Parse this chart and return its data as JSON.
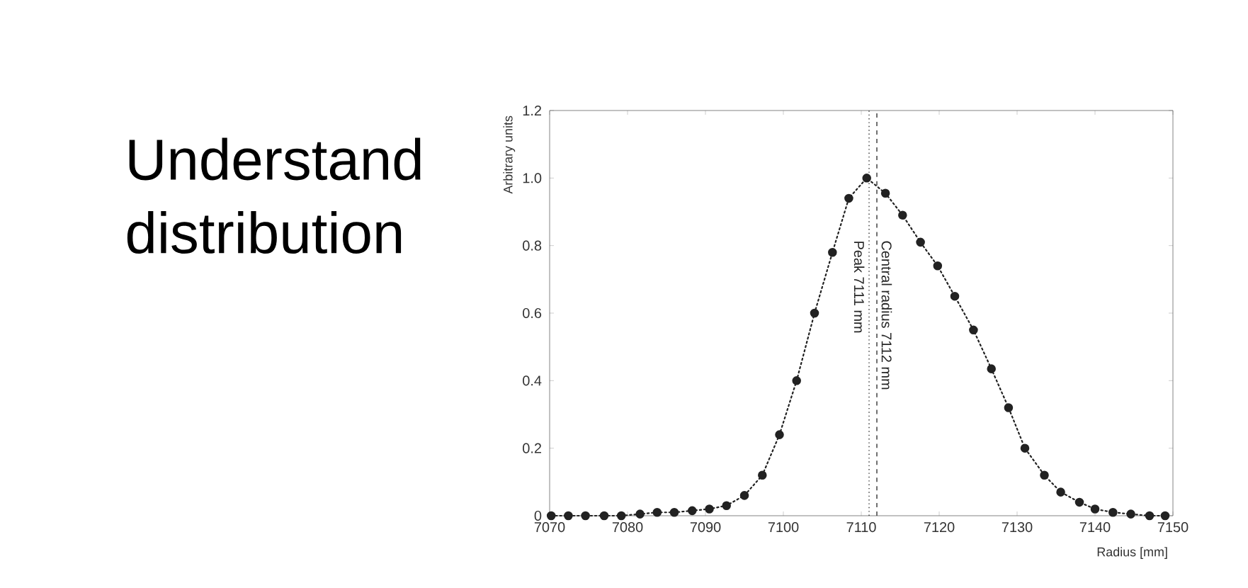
{
  "chart_data": {
    "type": "line",
    "title": "Understand distribution",
    "xlabel": "Radius [mm]",
    "ylabel": "Arbitrary units",
    "x": [
      7070.2,
      7072.4,
      7074.6,
      7077,
      7079.2,
      7081.6,
      7083.8,
      7086,
      7088.3,
      7090.5,
      7092.7,
      7095,
      7097.3,
      7099.5,
      7101.7,
      7104,
      7106.3,
      7108.4,
      7110.7,
      7113.1,
      7115.3,
      7117.6,
      7119.8,
      7122,
      7124.4,
      7126.7,
      7128.9,
      7131,
      7133.5,
      7135.6,
      7138,
      7140,
      7142.3,
      7144.6,
      7147,
      7149
    ],
    "series": [
      {
        "color": "#222222",
        "marker": "circle",
        "line_style": "dotted",
        "values": [
          0,
          0,
          0,
          0,
          0,
          0.005,
          0.01,
          0.01,
          0.015,
          0.02,
          0.03,
          0.06,
          0.12,
          0.24,
          0.4,
          0.6,
          0.78,
          0.94,
          1.0,
          0.955,
          0.89,
          0.81,
          0.74,
          0.65,
          0.55,
          0.435,
          0.32,
          0.2,
          0.12,
          0.07,
          0.04,
          0.02,
          0.01,
          0.005,
          0,
          0
        ]
      }
    ],
    "xlim": [
      7070,
      7150
    ],
    "ylim": [
      0,
      1.2
    ],
    "xticks": [
      7070,
      7080,
      7090,
      7100,
      7110,
      7120,
      7130,
      7140,
      7150
    ],
    "yticks": [
      0,
      0.2,
      0.4,
      0.6,
      0.8,
      {
        "value": 1.0,
        "label": "1.0"
      },
      1.2
    ],
    "ref_lines": [
      {
        "axis": "x",
        "value": 7111,
        "label": "Peak 7111 mm",
        "line_style": "dotted",
        "color": "#333333"
      },
      {
        "axis": "x",
        "value": 7112,
        "label": "Central radius 7112 mm",
        "line_style": "dashed",
        "color": "#333333"
      }
    ],
    "grid": false
  }
}
